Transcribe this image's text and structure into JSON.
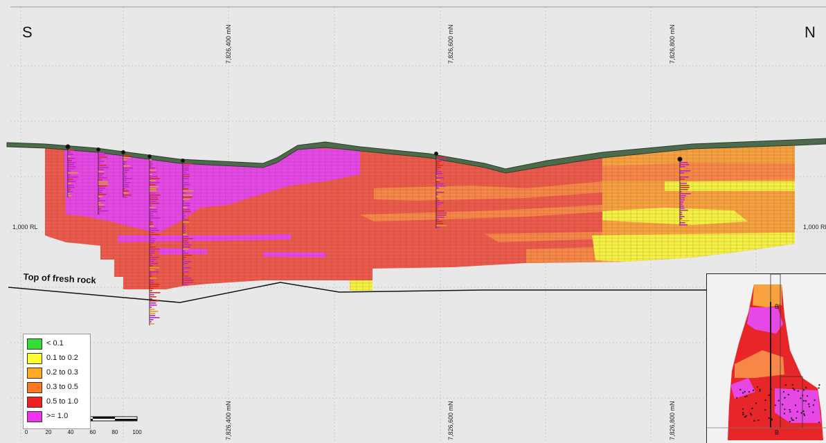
{
  "section": {
    "south_label": "S",
    "north_label": "N",
    "northing_labels": [
      "7,826,400 mN",
      "7,826,600 mN",
      "7,826,800 mN"
    ],
    "rl_label": "1,000 RL",
    "fresh_rock_label": "Top of fresh rock"
  },
  "legend": {
    "items": [
      {
        "label": "< 0.1",
        "color": "#33dd33"
      },
      {
        "label": "0.1 to 0.2",
        "color": "#ffff33"
      },
      {
        "label": "0.2 to 0.3",
        "color": "#ffaa22"
      },
      {
        "label": "0.3 to 0.5",
        "color": "#ff7722"
      },
      {
        "label": "0.5 to 1.0",
        "color": "#ee2222"
      },
      {
        "label": ">= 1.0",
        "color": "#ee33ee"
      }
    ]
  },
  "scale_bar": {
    "ticks": [
      "0",
      "20",
      "40",
      "60",
      "80",
      "100"
    ]
  },
  "inset": {
    "section_start_label": "B",
    "section_end_label": "B'"
  }
}
